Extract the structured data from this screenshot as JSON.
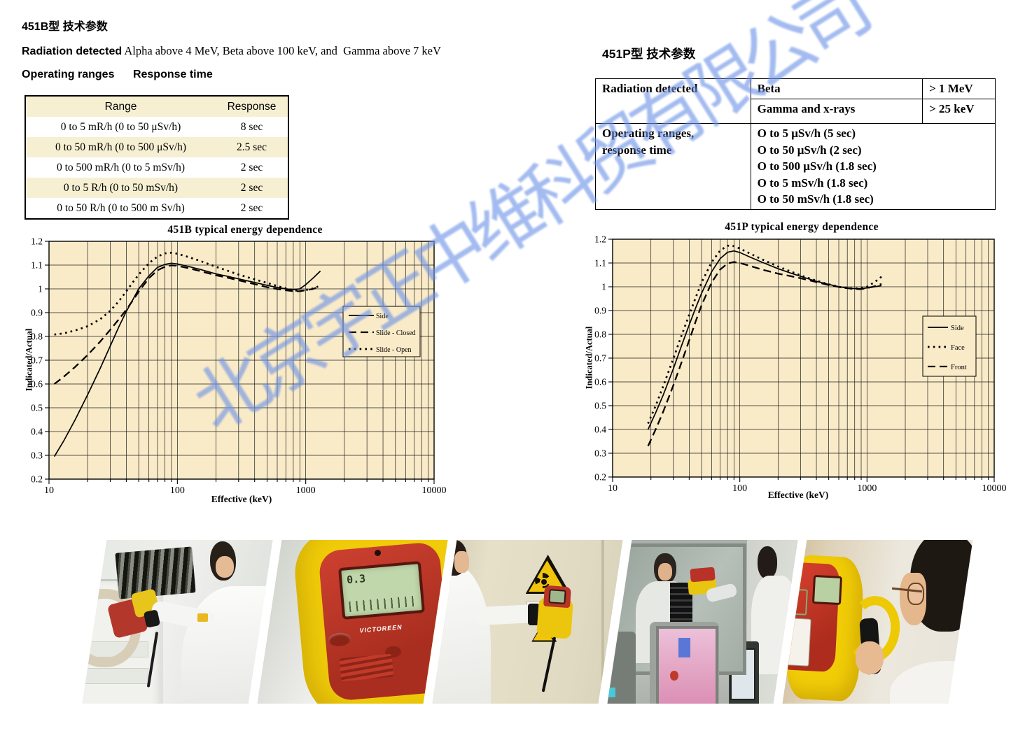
{
  "section_451b": {
    "title": "451B型 技术参数",
    "radiation_label": "Radiation detected",
    "radiation_value": " Alpha above 4 MeV, Beta above 100 keV, and  Gamma above 7 keV",
    "ranges_heading": "Operating ranges",
    "response_heading": "Response time",
    "table": {
      "headers": [
        "Range",
        "Response"
      ],
      "rows": [
        [
          "0 to 5 mR/h (0 to 50 μSv/h)",
          "8 sec"
        ],
        [
          "0 to 50 mR/h (0 to 500 μSv/h)",
          "2.5 sec"
        ],
        [
          "0 to 500 mR/h (0 to 5 mSv/h)",
          "2 sec"
        ],
        [
          "0 to 5 R/h (0 to 50 mSv/h)",
          "2 sec"
        ],
        [
          "0 to 50 R/h (0 to 500 m Sv/h)",
          "2 sec"
        ]
      ]
    }
  },
  "section_451p": {
    "title": "451P型 技术参数",
    "table": {
      "row1": {
        "label": "Radiation detected",
        "col2": "Beta",
        "col3": "> 1 MeV"
      },
      "row2": {
        "col2": "Gamma and x-rays",
        "col3": "> 25 keV"
      },
      "row3": {
        "label": "Operating ranges,\nresponse time",
        "lines": [
          "O to 5 μSv/h (5 sec)",
          "O to 50 μSv/h (2 sec)",
          "O to 500 μSv/h (1.8 sec)",
          "O to 5 mSv/h (1.8 sec)",
          "O to 50 mSv/h (1.8 sec)"
        ]
      }
    }
  },
  "watermark": {
    "text": "北京宇正中维科贸有限公司",
    "color": "#6a92e6"
  },
  "chart_data": [
    {
      "type": "line",
      "title": "451B typical energy dependence",
      "xlabel": "Effective (keV)",
      "ylabel": "Indicated/Actual",
      "xscale": "log",
      "xlim": [
        10,
        10000
      ],
      "ylim": [
        0.2,
        1.2
      ],
      "xticks": [
        10,
        100,
        1000,
        10000
      ],
      "ytick_step": 0.1,
      "grid": true,
      "plot_bg": "#faebc8",
      "legend_position": "middle-right",
      "series": [
        {
          "name": "Side",
          "style": "solid",
          "points": [
            [
              11,
              0.295
            ],
            [
              13,
              0.36
            ],
            [
              16,
              0.45
            ],
            [
              20,
              0.555
            ],
            [
              25,
              0.665
            ],
            [
              30,
              0.76
            ],
            [
              35,
              0.84
            ],
            [
              40,
              0.905
            ],
            [
              45,
              0.955
            ],
            [
              50,
              1.0
            ],
            [
              60,
              1.055
            ],
            [
              70,
              1.09
            ],
            [
              80,
              1.103
            ],
            [
              90,
              1.108
            ],
            [
              100,
              1.105
            ],
            [
              120,
              1.095
            ],
            [
              150,
              1.082
            ],
            [
              200,
              1.063
            ],
            [
              250,
              1.052
            ],
            [
              300,
              1.042
            ],
            [
              400,
              1.027
            ],
            [
              500,
              1.015
            ],
            [
              600,
              1.006
            ],
            [
              700,
              1.0
            ],
            [
              800,
              0.997
            ],
            [
              900,
              1.0
            ],
            [
              1000,
              1.018
            ],
            [
              1150,
              1.047
            ],
            [
              1300,
              1.075
            ]
          ]
        },
        {
          "name": "Slide - Closed",
          "style": "dashed",
          "points": [
            [
              11,
              0.6
            ],
            [
              13,
              0.63
            ],
            [
              16,
              0.672
            ],
            [
              20,
              0.722
            ],
            [
              25,
              0.778
            ],
            [
              30,
              0.828
            ],
            [
              35,
              0.872
            ],
            [
              40,
              0.912
            ],
            [
              45,
              0.952
            ],
            [
              50,
              0.988
            ],
            [
              60,
              1.045
            ],
            [
              70,
              1.078
            ],
            [
              80,
              1.093
            ],
            [
              90,
              1.099
            ],
            [
              100,
              1.097
            ],
            [
              120,
              1.088
            ],
            [
              150,
              1.075
            ],
            [
              200,
              1.057
            ],
            [
              250,
              1.046
            ],
            [
              300,
              1.036
            ],
            [
              400,
              1.02
            ],
            [
              500,
              1.007
            ],
            [
              600,
              0.999
            ],
            [
              700,
              0.994
            ],
            [
              800,
              0.99
            ],
            [
              900,
              0.99
            ],
            [
              1000,
              0.994
            ],
            [
              1150,
              1.0
            ],
            [
              1250,
              1.008
            ]
          ]
        },
        {
          "name": "Slide - Open",
          "style": "dotted",
          "points": [
            [
              11,
              0.808
            ],
            [
              13,
              0.813
            ],
            [
              16,
              0.825
            ],
            [
              20,
              0.843
            ],
            [
              25,
              0.872
            ],
            [
              30,
              0.908
            ],
            [
              35,
              0.948
            ],
            [
              40,
              0.99
            ],
            [
              45,
              1.028
            ],
            [
              50,
              1.06
            ],
            [
              60,
              1.108
            ],
            [
              70,
              1.136
            ],
            [
              80,
              1.149
            ],
            [
              90,
              1.152
            ],
            [
              100,
              1.148
            ],
            [
              120,
              1.135
            ],
            [
              150,
              1.118
            ],
            [
              200,
              1.093
            ],
            [
              250,
              1.075
            ],
            [
              300,
              1.06
            ],
            [
              400,
              1.04
            ],
            [
              500,
              1.025
            ],
            [
              600,
              1.012
            ],
            [
              700,
              1.002
            ],
            [
              800,
              0.995
            ],
            [
              900,
              0.991
            ],
            [
              1000,
              0.995
            ],
            [
              1150,
              1.002
            ],
            [
              1250,
              1.01
            ]
          ]
        }
      ]
    },
    {
      "type": "line",
      "title": "451P typical energy dependence",
      "xlabel": "Effective (keV)",
      "ylabel": "Indicated/Actual",
      "xscale": "log",
      "xlim": [
        10,
        10000
      ],
      "ylim": [
        0.2,
        1.2
      ],
      "xticks": [
        10,
        100,
        1000,
        10000
      ],
      "ytick_step": 0.1,
      "grid": true,
      "plot_bg": "#faebc8",
      "legend_position": "middle-right",
      "series": [
        {
          "name": "Side",
          "style": "solid",
          "points": [
            [
              19,
              0.4
            ],
            [
              22,
              0.475
            ],
            [
              25,
              0.545
            ],
            [
              30,
              0.655
            ],
            [
              35,
              0.755
            ],
            [
              40,
              0.84
            ],
            [
              45,
              0.912
            ],
            [
              50,
              0.972
            ],
            [
              60,
              1.063
            ],
            [
              70,
              1.118
            ],
            [
              80,
              1.145
            ],
            [
              90,
              1.151
            ],
            [
              100,
              1.144
            ],
            [
              120,
              1.125
            ],
            [
              150,
              1.103
            ],
            [
              200,
              1.076
            ],
            [
              250,
              1.058
            ],
            [
              300,
              1.044
            ],
            [
              400,
              1.023
            ],
            [
              500,
              1.01
            ],
            [
              600,
              1.0
            ],
            [
              700,
              0.995
            ],
            [
              800,
              0.992
            ],
            [
              900,
              0.992
            ],
            [
              1000,
              0.995
            ],
            [
              1150,
              1.0
            ],
            [
              1300,
              1.005
            ]
          ]
        },
        {
          "name": "Face",
          "style": "dotted",
          "points": [
            [
              19,
              0.425
            ],
            [
              22,
              0.505
            ],
            [
              25,
              0.582
            ],
            [
              30,
              0.698
            ],
            [
              35,
              0.798
            ],
            [
              40,
              0.882
            ],
            [
              45,
              0.955
            ],
            [
              50,
              1.018
            ],
            [
              60,
              1.103
            ],
            [
              70,
              1.152
            ],
            [
              80,
              1.173
            ],
            [
              90,
              1.171
            ],
            [
              100,
              1.161
            ],
            [
              120,
              1.14
            ],
            [
              150,
              1.115
            ],
            [
              200,
              1.085
            ],
            [
              250,
              1.065
            ],
            [
              300,
              1.048
            ],
            [
              400,
              1.026
            ],
            [
              500,
              1.01
            ],
            [
              600,
              1.0
            ],
            [
              700,
              0.994
            ],
            [
              800,
              0.992
            ],
            [
              900,
              0.994
            ],
            [
              1000,
              1.0
            ],
            [
              1150,
              1.02
            ],
            [
              1300,
              1.042
            ]
          ]
        },
        {
          "name": "Front",
          "style": "dashed",
          "points": [
            [
              19,
              0.33
            ],
            [
              22,
              0.405
            ],
            [
              25,
              0.475
            ],
            [
              30,
              0.585
            ],
            [
              35,
              0.685
            ],
            [
              40,
              0.775
            ],
            [
              45,
              0.855
            ],
            [
              50,
              0.922
            ],
            [
              60,
              1.018
            ],
            [
              70,
              1.072
            ],
            [
              80,
              1.098
            ],
            [
              90,
              1.104
            ],
            [
              100,
              1.1
            ],
            [
              120,
              1.088
            ],
            [
              150,
              1.072
            ],
            [
              200,
              1.055
            ],
            [
              250,
              1.045
            ],
            [
              300,
              1.036
            ],
            [
              400,
              1.02
            ],
            [
              500,
              1.007
            ],
            [
              600,
              0.999
            ],
            [
              700,
              0.994
            ],
            [
              800,
              0.99
            ],
            [
              900,
              0.99
            ],
            [
              1000,
              0.994
            ],
            [
              1150,
              1.002
            ],
            [
              1300,
              1.012
            ]
          ]
        }
      ]
    }
  ],
  "photos": [
    {
      "name": "operator scanning equipment in lab"
    },
    {
      "name": "victoreen survey meter close-up",
      "display_reading": "0.3",
      "brand": "VICTOREEN"
    },
    {
      "name": "operator measuring wall with radiation warning signs"
    },
    {
      "name": "measurement through control-room window with monitors"
    },
    {
      "name": "operator holding survey meter close-up"
    }
  ]
}
